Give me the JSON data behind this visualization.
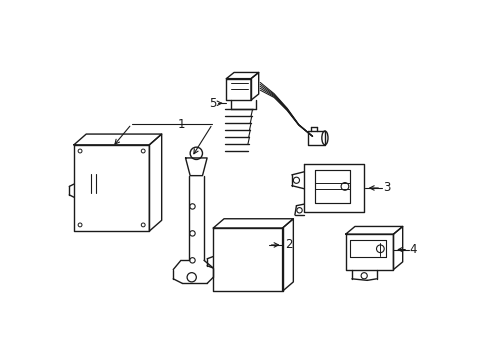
{
  "background_color": "#ffffff",
  "line_color": "#1a1a1a",
  "line_width": 1.0,
  "figsize": [
    4.89,
    3.6
  ],
  "dpi": 100,
  "label_fontsize": 8.5,
  "parts": [
    "1",
    "2",
    "3",
    "4",
    "5"
  ]
}
